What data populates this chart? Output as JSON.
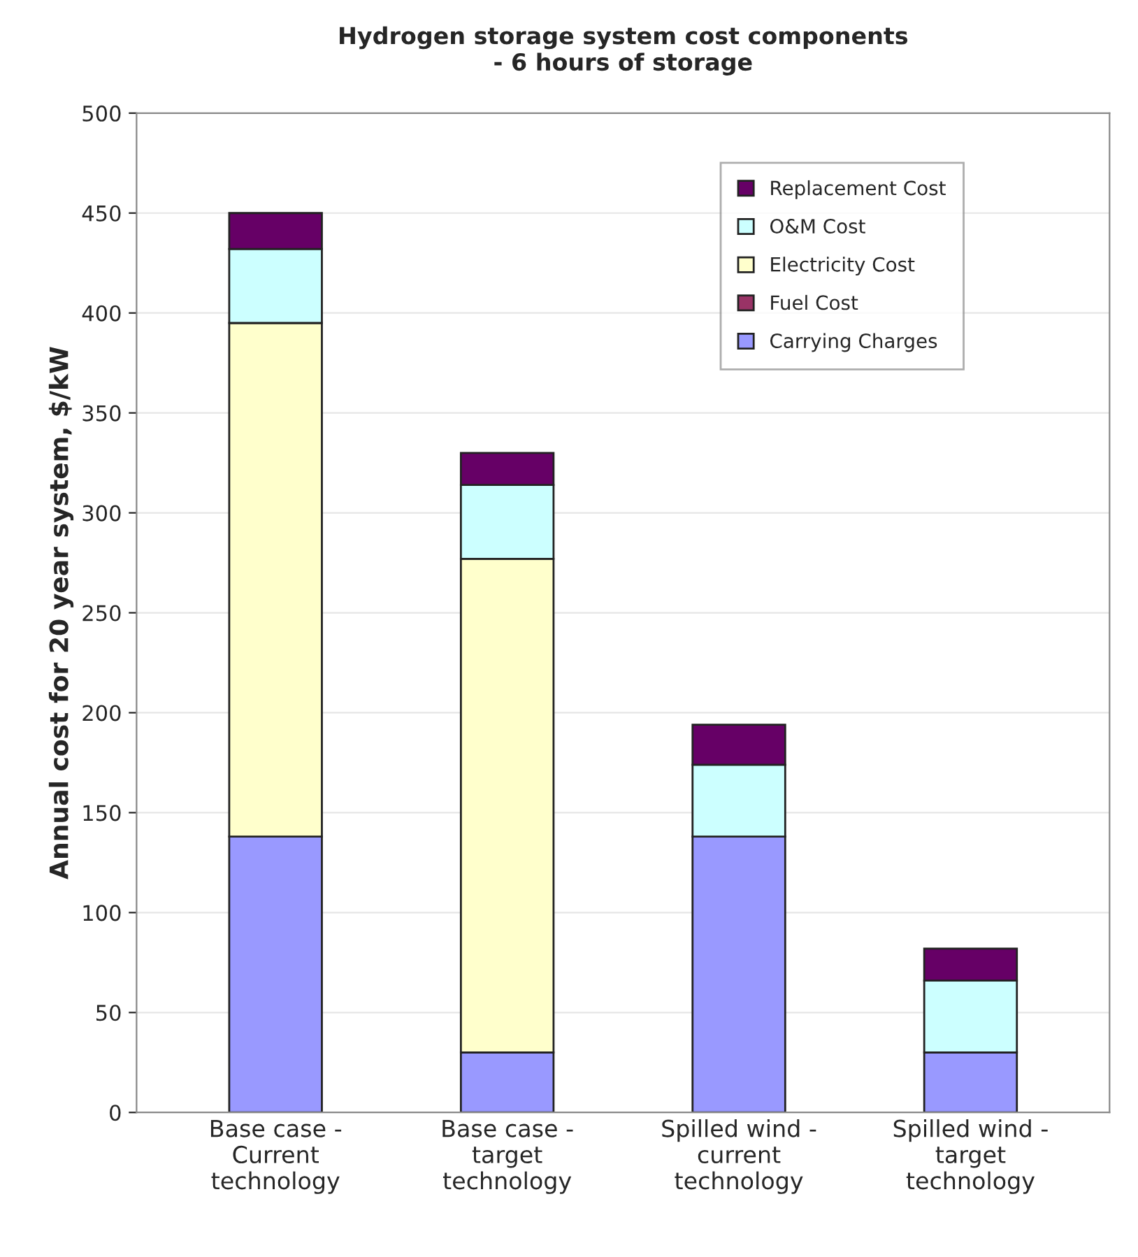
{
  "chart_data": {
    "type": "bar",
    "stacked": true,
    "title": "Hydrogen storage system cost components\n- 6 hours of storage",
    "ylabel": "Annual cost for 20 year system, $/kW",
    "categories": [
      "Base case -\nCurrent\ntechnology",
      "Base case -\ntarget\ntechnology",
      "Spilled wind -\ncurrent\ntechnology",
      "Spilled wind -\ntarget\ntechnology"
    ],
    "series": [
      {
        "name": "Carrying Charges",
        "color": "#9999ff",
        "values": [
          138,
          30,
          138,
          30
        ]
      },
      {
        "name": "Fuel Cost",
        "color": "#993366",
        "values": [
          0,
          0,
          0,
          0
        ]
      },
      {
        "name": "Electricity Cost",
        "color": "#ffffcc",
        "values": [
          257,
          247,
          0,
          0
        ]
      },
      {
        "name": "O&M Cost",
        "color": "#ccffff",
        "values": [
          37,
          37,
          36,
          36
        ]
      },
      {
        "name": "Replacement Cost",
        "color": "#660066",
        "values": [
          18,
          16,
          20,
          16
        ]
      }
    ],
    "ylim": [
      0,
      500
    ],
    "yticks": [
      0,
      50,
      100,
      150,
      200,
      250,
      300,
      350,
      400,
      450,
      500
    ],
    "grid": "y",
    "legend": "top right"
  }
}
